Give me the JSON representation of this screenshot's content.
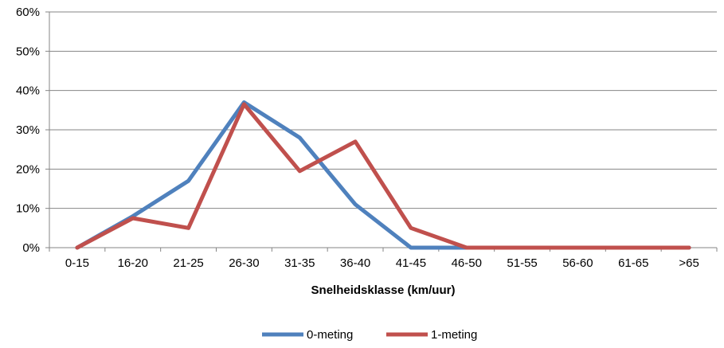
{
  "chart_data": {
    "type": "line",
    "categories": [
      "0-15",
      "16-20",
      "21-25",
      "26-30",
      "31-35",
      "36-40",
      "41-45",
      "46-50",
      "51-55",
      "56-60",
      "61-65",
      ">65"
    ],
    "series": [
      {
        "name": "0-meting",
        "color": "#4f81bd",
        "values": [
          0,
          8,
          17,
          37,
          28,
          11,
          0,
          0,
          0,
          0,
          0,
          0
        ]
      },
      {
        "name": "1-meting",
        "color": "#c0504d",
        "values": [
          0,
          7.5,
          5,
          36.5,
          19.5,
          27,
          5,
          0,
          0,
          0,
          0,
          0
        ]
      }
    ],
    "yticks": [
      "0%",
      "10%",
      "20%",
      "30%",
      "40%",
      "50%",
      "60%"
    ],
    "ylim": [
      0,
      60
    ],
    "xlabel": "Snelheidsklasse (km/uur)",
    "ylabel": "",
    "grid": true,
    "legend_position": "bottom"
  }
}
